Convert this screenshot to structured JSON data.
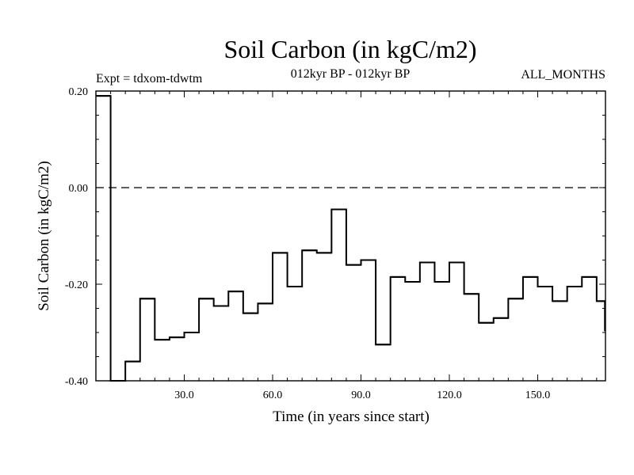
{
  "chart_data": {
    "type": "line",
    "style": "step",
    "title": "Soil Carbon (in kgC/m2)",
    "subtitle": "012kyr BP - 012kyr BP",
    "experiment": "Expt = tdxom-tdwtm",
    "period": "ALL_MONTHS",
    "xlabel": "Time (in years since start)",
    "ylabel": "Soil Carbon (in kgC/m2)",
    "xlim": [
      0,
      173
    ],
    "ylim": [
      -0.4,
      0.2
    ],
    "x_ticks": [
      "30.0",
      "60.0",
      "90.0",
      "120.0",
      "150.0"
    ],
    "x_tick_values": [
      30,
      60,
      90,
      120,
      150
    ],
    "y_ticks": [
      "-0.40",
      "-0.20",
      "0.00",
      "0.20"
    ],
    "y_tick_values": [
      -0.4,
      -0.2,
      0.0,
      0.2
    ],
    "reference_line": 0.0,
    "x": [
      0,
      5,
      10,
      15,
      20,
      25,
      30,
      35,
      40,
      45,
      50,
      55,
      60,
      65,
      70,
      75,
      80,
      85,
      90,
      95,
      100,
      105,
      110,
      115,
      120,
      125,
      130,
      135,
      140,
      145,
      150,
      155,
      160,
      165,
      170
    ],
    "values": [
      0.19,
      -0.4,
      -0.36,
      -0.23,
      -0.315,
      -0.31,
      -0.3,
      -0.23,
      -0.245,
      -0.215,
      -0.26,
      -0.24,
      -0.135,
      -0.205,
      -0.13,
      -0.135,
      -0.045,
      -0.16,
      -0.15,
      -0.325,
      -0.185,
      -0.195,
      -0.155,
      -0.195,
      -0.155,
      -0.22,
      -0.28,
      -0.27,
      -0.23,
      -0.185,
      -0.205,
      -0.235,
      -0.205,
      -0.185,
      -0.235
    ]
  }
}
